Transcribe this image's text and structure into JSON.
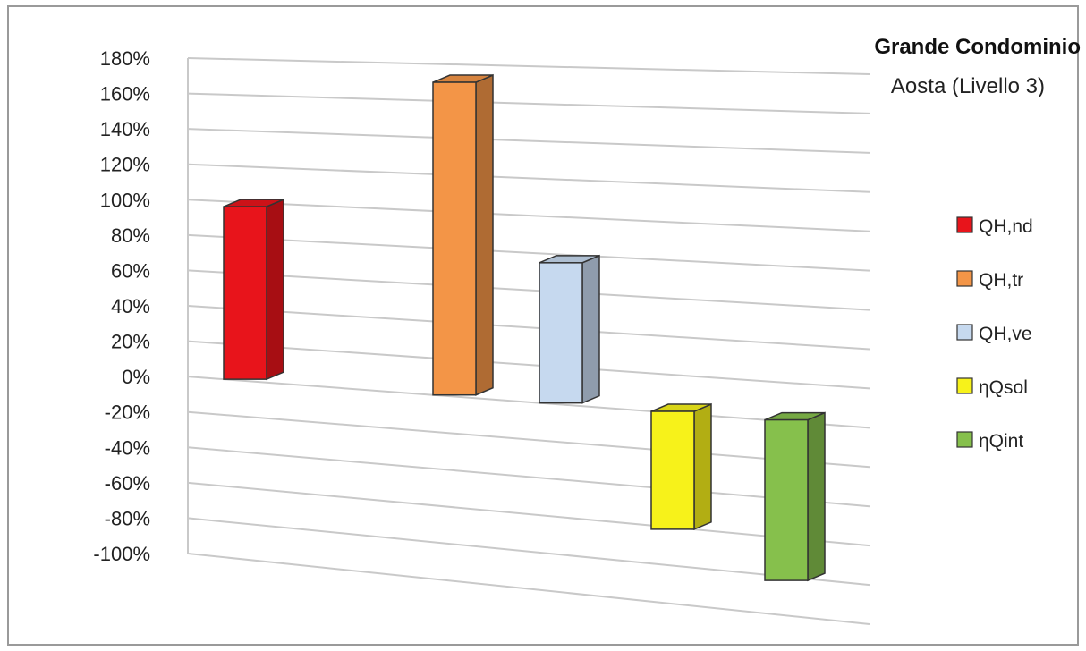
{
  "chart_data": {
    "type": "bar",
    "title": "Grande Condominio",
    "subtitle": "Aosta (Livello 3)",
    "xlabel": "",
    "ylabel": "",
    "ylim": [
      -100,
      180
    ],
    "y_step": 20,
    "y_tick_suffix": "%",
    "grid": true,
    "legend_position": "right",
    "series": [
      {
        "name": "QH,nd",
        "value": 97,
        "color": "#e8141b"
      },
      {
        "name": "QH,tr",
        "value": 170,
        "color": "#f39547"
      },
      {
        "name": "QH,ve",
        "value": 75,
        "color": "#c6d9ef"
      },
      {
        "name": "ηQsol",
        "value": -62,
        "color": "#f7f21a"
      },
      {
        "name": "ηQint",
        "value": -83,
        "color": "#86c04c"
      }
    ]
  }
}
